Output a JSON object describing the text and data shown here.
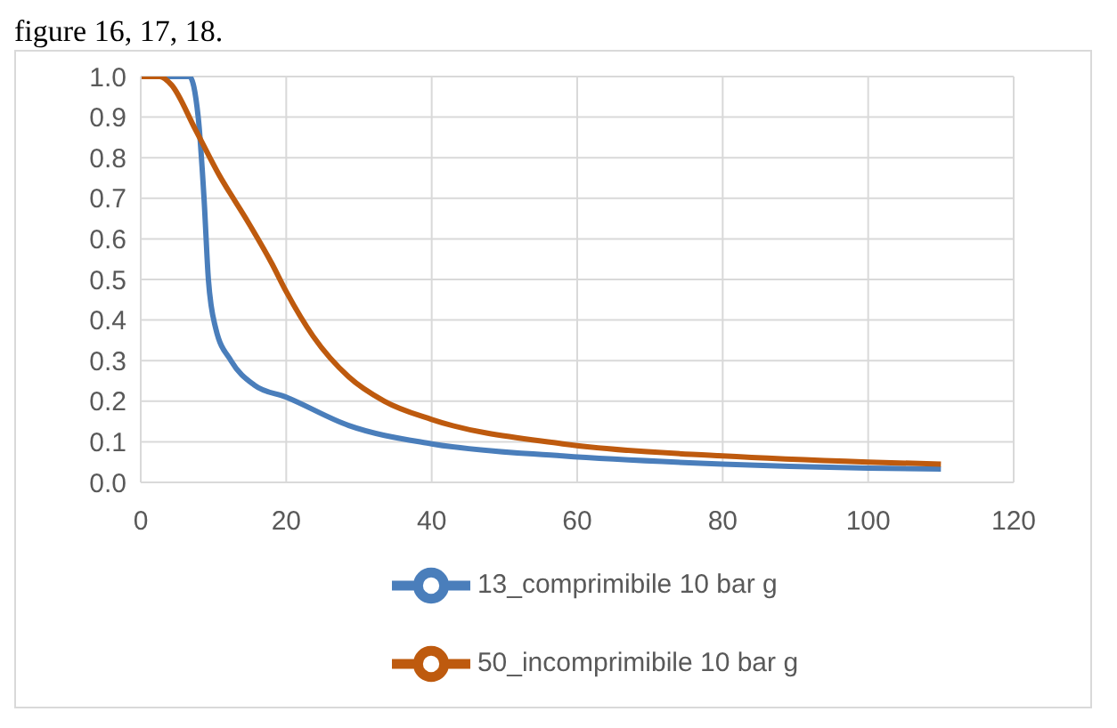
{
  "chart_data": {
    "type": "line",
    "annotations": [
      "figure 16, 17, 18."
    ],
    "series": [
      {
        "name": "13_comprimibile 10 bar g",
        "color": "#4a7ebb",
        "x": [
          0,
          5,
          6.7,
          7.9,
          8.7,
          9.3,
          10.3,
          12.4,
          15.6,
          20,
          28.6,
          40,
          58,
          80,
          100,
          110
        ],
        "values": [
          1,
          1,
          1,
          0.9,
          0.7,
          0.5,
          0.38,
          0.3,
          0.24,
          0.21,
          0.14,
          0.095,
          0.065,
          0.045,
          0.035,
          0.033
        ]
      },
      {
        "name": "50_incomprimibile 10 bar g",
        "color": "#be5a0e",
        "x": [
          0,
          2.6,
          4.2,
          7.5,
          10.7,
          14.8,
          18,
          20,
          23.7,
          28.6,
          33.5,
          40,
          58,
          80,
          100,
          110
        ],
        "values": [
          1,
          1,
          0.98,
          0.87,
          0.76,
          0.64,
          0.54,
          0.47,
          0.36,
          0.26,
          0.2,
          0.155,
          0.095,
          0.065,
          0.05,
          0.045
        ]
      }
    ],
    "xlim": [
      0,
      120
    ],
    "xticks": [
      0,
      20,
      40,
      60,
      80,
      100,
      120
    ],
    "ylim": [
      0,
      1
    ],
    "yticks": [
      {
        "value": 0,
        "label": "0.0"
      },
      {
        "value": 0.1,
        "label": "0.1"
      },
      {
        "value": 0.2,
        "label": "0.2"
      },
      {
        "value": 0.3,
        "label": "0.3"
      },
      {
        "value": 0.4,
        "label": "0.4"
      },
      {
        "value": 0.5,
        "label": "0.5"
      },
      {
        "value": 0.6,
        "label": "0.6"
      },
      {
        "value": 0.7,
        "label": "0.7"
      },
      {
        "value": 0.8,
        "label": "0.8"
      },
      {
        "value": 0.9,
        "label": "0.9"
      },
      {
        "value": 1,
        "label": "1.0"
      }
    ],
    "grid": true,
    "legend": "bottom",
    "marker": "none",
    "line_style": "solid"
  }
}
